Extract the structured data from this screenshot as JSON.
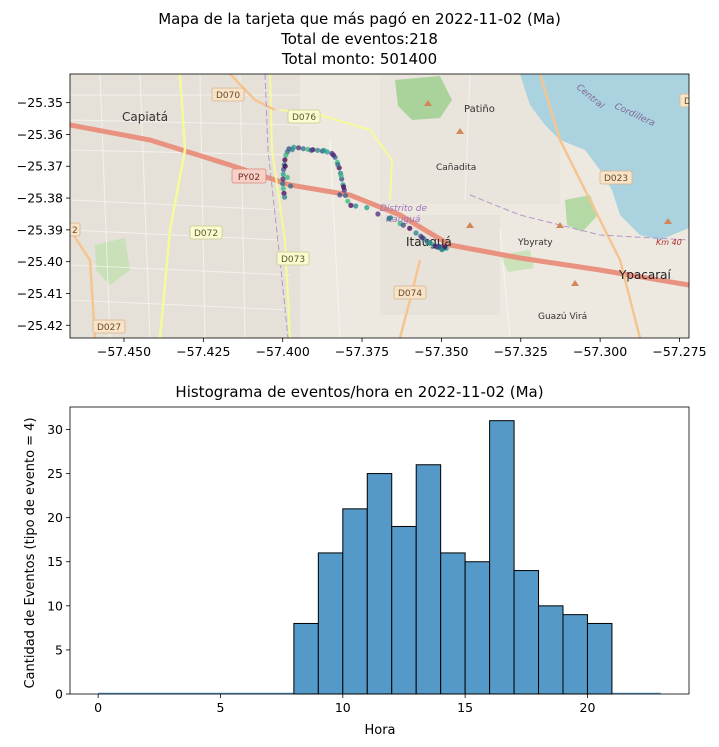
{
  "chart_data": [
    {
      "type": "scatter",
      "title_line1": "Mapa de la tarjeta que más pagó en 2022-11-02 (Ma)",
      "title_line2": "Total de eventos:218",
      "title_line3": "Total monto: 501400",
      "xlim": [
        -57.467,
        -57.272
      ],
      "ylim": [
        -25.424,
        -25.341
      ],
      "xticks": [
        -57.45,
        -57.425,
        -57.4,
        -57.375,
        -57.35,
        -57.325,
        -57.3,
        -57.275
      ],
      "xtick_labels": [
        "−57.450",
        "−57.425",
        "−57.400",
        "−57.375",
        "−57.350",
        "−57.325",
        "−57.300",
        "−57.275"
      ],
      "yticks": [
        -25.35,
        -25.36,
        -25.37,
        -25.38,
        -25.39,
        -25.4,
        -25.41,
        -25.42
      ],
      "ytick_labels": [
        "−25.35",
        "−25.36",
        "−25.37",
        "−25.38",
        "−25.39",
        "−25.40",
        "−25.41",
        "−25.42"
      ],
      "map_labels": {
        "capiata": "Capiatá",
        "patino": "Patiño",
        "canadita": "Cañadita",
        "distrito1": "Distrito de",
        "distrito2": "Itauguá",
        "itaugua": "Itauguá",
        "ybyraty": "Ybyraty",
        "ypacarai": "Ypacaraí",
        "guazu": "Guazú Virá",
        "central": "Central",
        "cordillera": "Cordillera",
        "km40": "Km 40",
        "d070": "D070",
        "d076": "D076",
        "py02": "PY02",
        "d072": "D072",
        "d073": "D073",
        "d074": "D074",
        "d023": "D023",
        "d027": "D027",
        "edge_right": "D",
        "edge_left": "2"
      },
      "points": [
        [
          -57.3985,
          -25.3655
        ],
        [
          -57.399,
          -25.3665
        ],
        [
          -57.3993,
          -25.368
        ],
        [
          -57.3995,
          -25.3695
        ],
        [
          -57.3997,
          -25.371
        ],
        [
          -57.3998,
          -25.3725
        ],
        [
          -57.3999,
          -25.374
        ],
        [
          -57.4,
          -25.3755
        ],
        [
          -57.3998,
          -25.377
        ],
        [
          -57.3996,
          -25.3785
        ],
        [
          -57.3994,
          -25.3797
        ],
        [
          -57.398,
          -25.3645
        ],
        [
          -57.3965,
          -25.364
        ],
        [
          -57.395,
          -25.3642
        ],
        [
          -57.3935,
          -25.3645
        ],
        [
          -57.392,
          -25.3647
        ],
        [
          -57.3905,
          -25.3648
        ],
        [
          -57.389,
          -25.365
        ],
        [
          -57.3875,
          -25.3652
        ],
        [
          -57.386,
          -25.3655
        ],
        [
          -57.3845,
          -25.366
        ],
        [
          -57.3835,
          -25.3672
        ],
        [
          -57.3828,
          -25.3688
        ],
        [
          -57.3822,
          -25.3705
        ],
        [
          -57.3818,
          -25.3722
        ],
        [
          -57.3814,
          -25.374
        ],
        [
          -57.381,
          -25.3758
        ],
        [
          -57.3806,
          -25.3775
        ],
        [
          -57.3802,
          -25.3792
        ],
        [
          -57.3795,
          -25.381
        ],
        [
          -57.3785,
          -25.3823
        ],
        [
          -57.377,
          -25.3825
        ],
        [
          -57.382,
          -25.379
        ],
        [
          -57.3735,
          -25.383
        ],
        [
          -57.37,
          -25.385
        ],
        [
          -57.3665,
          -25.3865
        ],
        [
          -57.363,
          -25.388
        ],
        [
          -57.36,
          -25.3895
        ],
        [
          -57.358,
          -25.391
        ],
        [
          -57.3565,
          -25.392
        ],
        [
          -57.3555,
          -25.3928
        ],
        [
          -57.3545,
          -25.3936
        ],
        [
          -57.3535,
          -25.3942
        ],
        [
          -57.3525,
          -25.3948
        ],
        [
          -57.3515,
          -25.3953
        ],
        [
          -57.3505,
          -25.3956
        ],
        [
          -57.3495,
          -25.3958
        ],
        [
          -57.3485,
          -25.3958
        ],
        [
          -57.352,
          -25.395
        ],
        [
          -57.351,
          -25.3955
        ],
        [
          -57.35,
          -25.396
        ],
        [
          -57.349,
          -25.3954
        ],
        [
          -57.3498,
          -25.3962
        ],
        [
          -57.3508,
          -25.3952
        ],
        [
          -57.354,
          -25.394
        ],
        [
          -57.356,
          -25.3925
        ],
        [
          -57.3975,
          -25.3762
        ],
        [
          -57.3985,
          -25.3735
        ],
        [
          -57.3992,
          -25.37
        ],
        [
          -57.397,
          -25.3648
        ],
        [
          -57.391,
          -25.365
        ],
        [
          -57.387,
          -25.365
        ],
        [
          -57.384,
          -25.3665
        ],
        [
          -57.3826,
          -25.3695
        ],
        [
          -57.3816,
          -25.373
        ],
        [
          -57.3808,
          -25.3765
        ],
        [
          -57.366,
          -25.3862
        ],
        [
          -57.362,
          -25.3885
        ]
      ],
      "point_colors": [
        "#31688e",
        "#35b779",
        "#440154",
        "#26828e",
        "#3e4989",
        "#1f9e89",
        "#482878"
      ]
    },
    {
      "type": "bar",
      "title": "Histograma de eventos/hora en 2022-11-02 (Ma)",
      "xlabel": "Hora",
      "ylabel": "Cantidad de Eventos (tipo de evento = 4)",
      "xlim": [
        -1.15,
        24.15
      ],
      "ylim": [
        0,
        32.55
      ],
      "xticks": [
        0,
        5,
        10,
        15,
        20
      ],
      "yticks": [
        0,
        5,
        10,
        15,
        20,
        25,
        30
      ],
      "bin_width": 1,
      "bins": [
        {
          "start": 8,
          "value": 8
        },
        {
          "start": 9,
          "value": 16
        },
        {
          "start": 10,
          "value": 21
        },
        {
          "start": 11,
          "value": 25
        },
        {
          "start": 12,
          "value": 19
        },
        {
          "start": 13,
          "value": 26
        },
        {
          "start": 14,
          "value": 16
        },
        {
          "start": 15,
          "value": 15
        },
        {
          "start": 16,
          "value": 31
        },
        {
          "start": 17,
          "value": 14
        },
        {
          "start": 18,
          "value": 10
        },
        {
          "start": 19,
          "value": 9
        },
        {
          "start": 20,
          "value": 8
        }
      ],
      "baseline_range": [
        0,
        23
      ],
      "bar_color": "#5499c7",
      "edge_color": "#000000"
    }
  ]
}
